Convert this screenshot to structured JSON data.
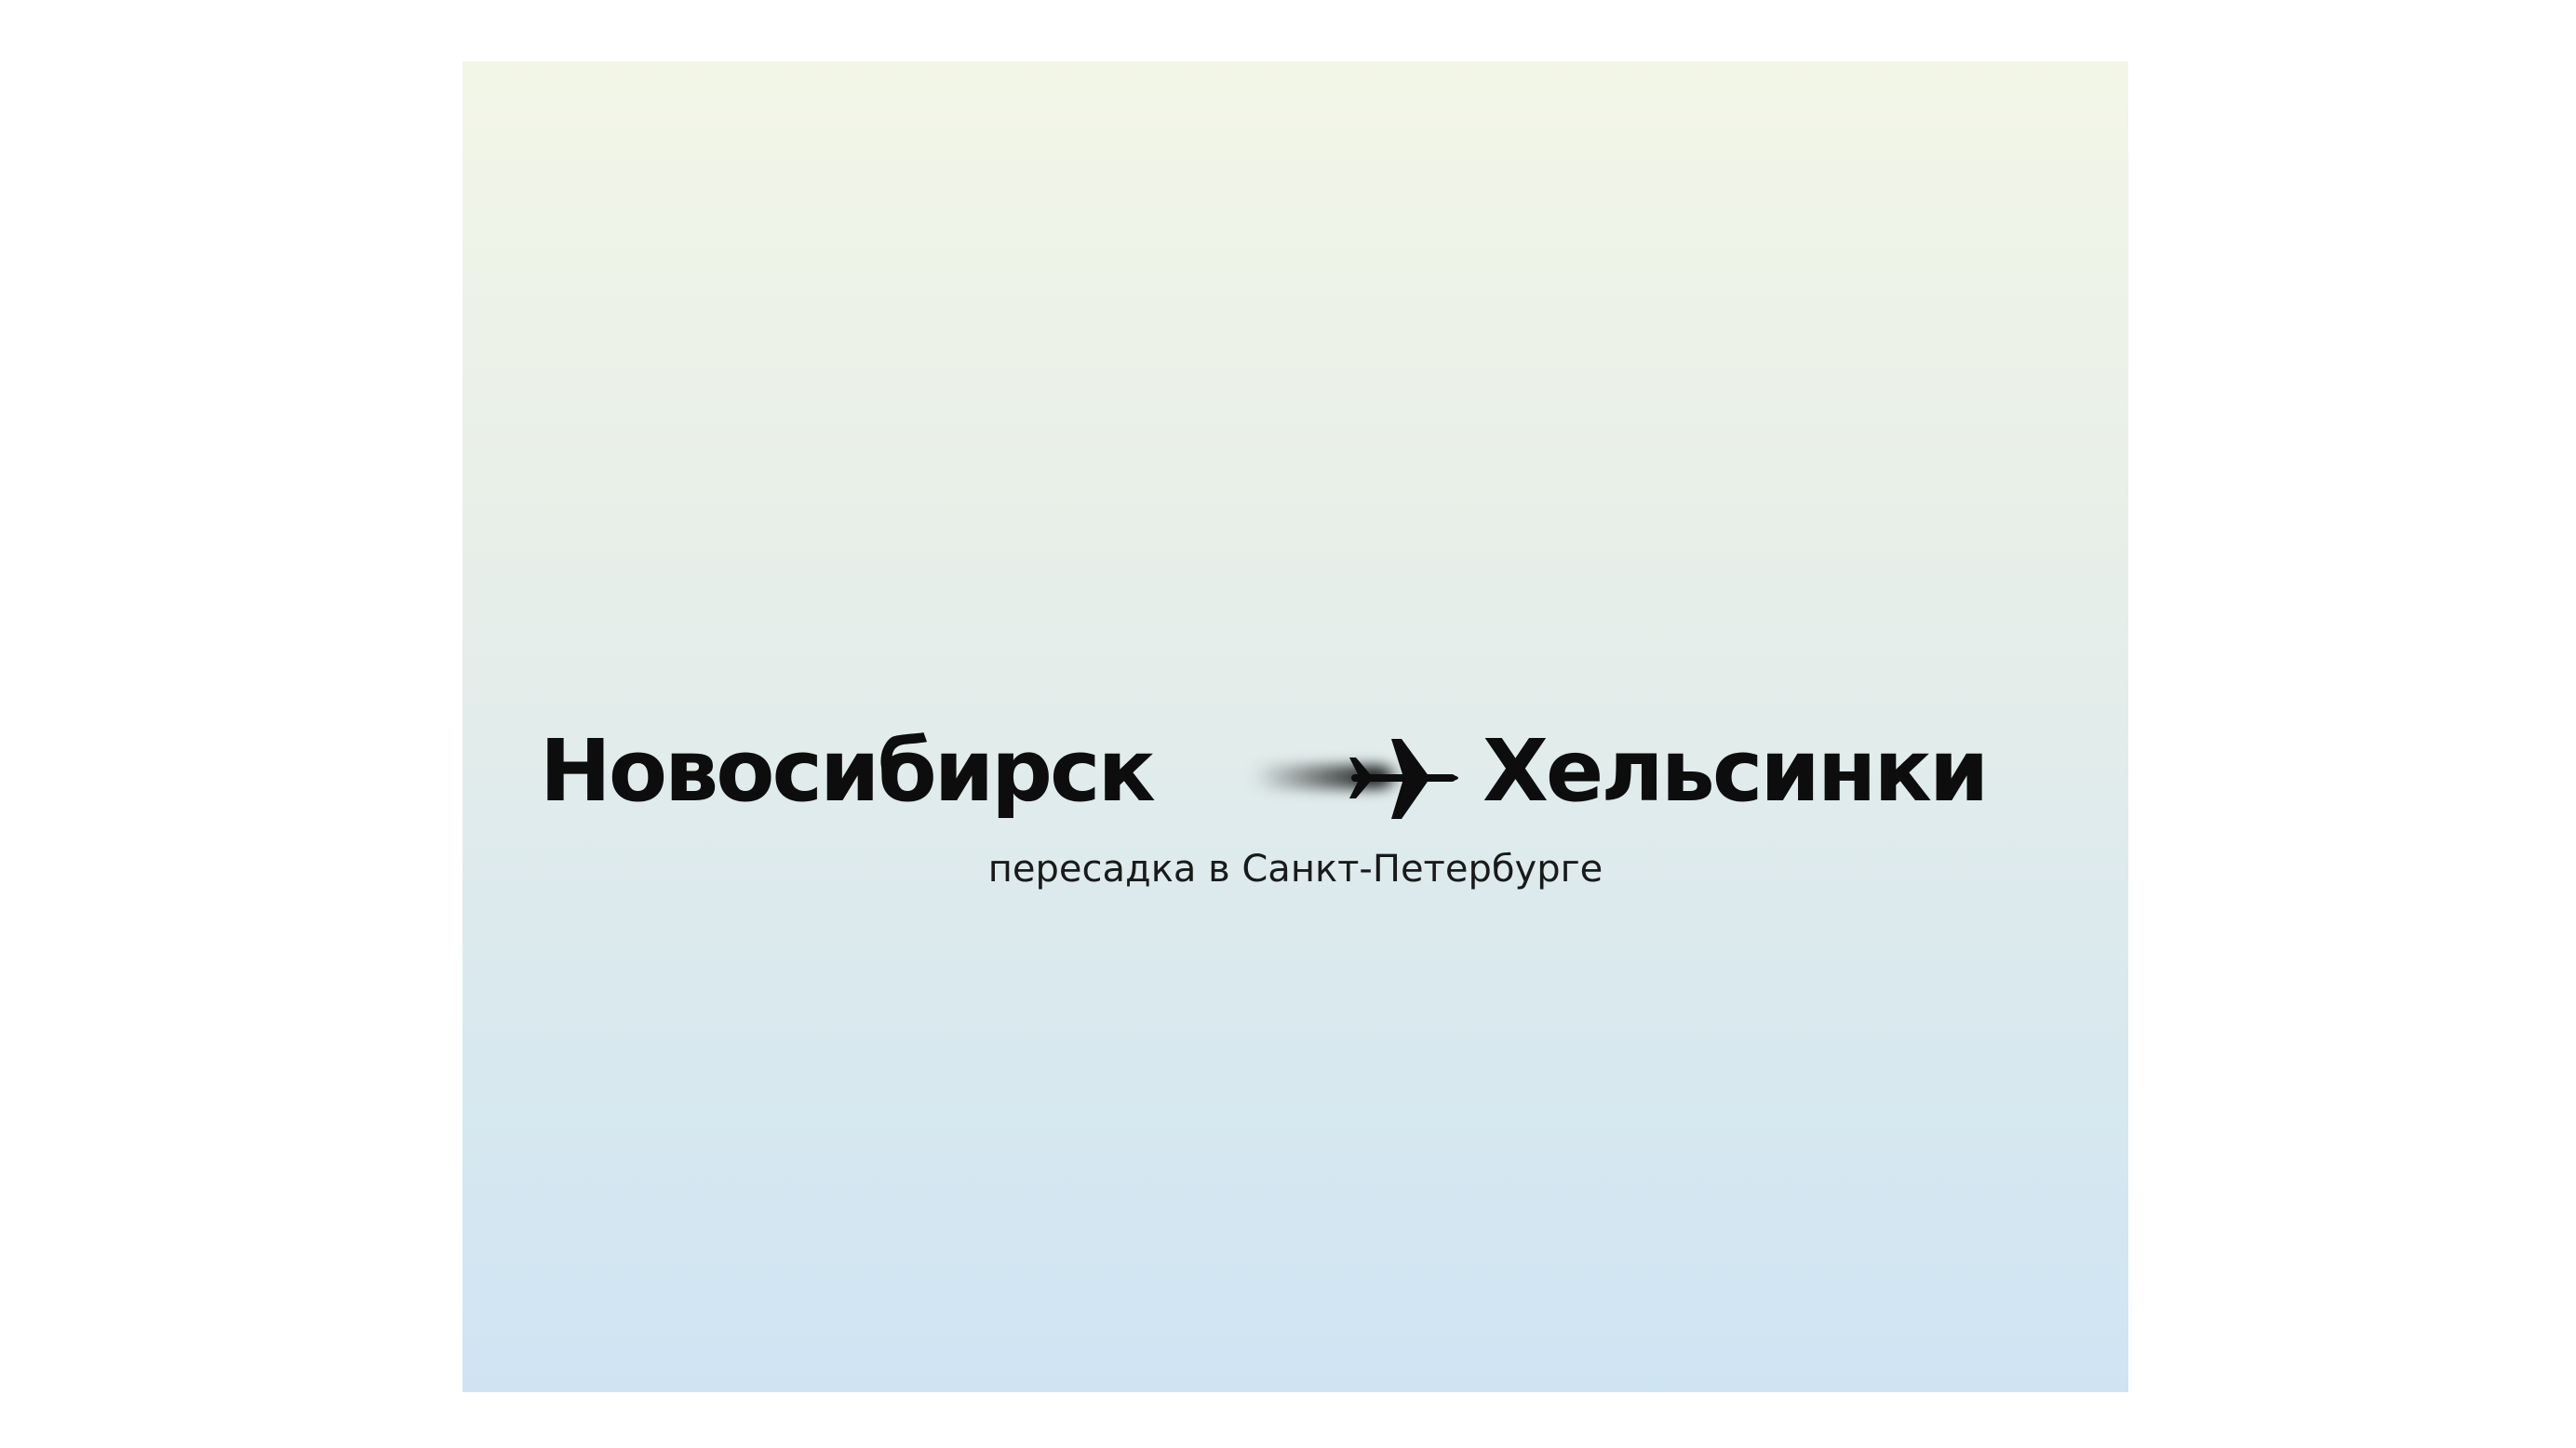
{
  "route": {
    "from": "Новосибирск",
    "to": "Хельсинки",
    "transfer": "пересадка в Санкт-Петербурге"
  },
  "icons": {
    "plane": "airplane-icon"
  },
  "colors": {
    "gradient_top": "#f3f6e7",
    "gradient_bottom": "#cfe4f3",
    "text": "#0d0d0d"
  }
}
